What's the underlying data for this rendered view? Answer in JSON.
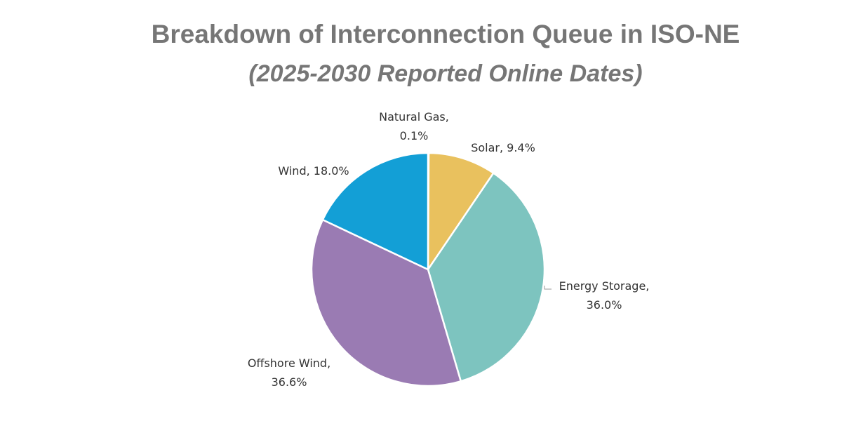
{
  "chart_data": {
    "type": "pie",
    "title": "Breakdown of Interconnection Queue in ISO-NE",
    "subtitle": "(2025-2030 Reported Online Dates)",
    "slices": [
      {
        "name": "Natural Gas",
        "value": 0.1,
        "color": "#c9c9c9",
        "label_lines": [
          "Natural Gas,",
          "0.1%"
        ]
      },
      {
        "name": "Solar",
        "value": 9.4,
        "color": "#e9c15e",
        "label_lines": [
          "Solar, 9.4%"
        ]
      },
      {
        "name": "Energy Storage",
        "value": 36.0,
        "color": "#7dc4bf",
        "label_lines": [
          "Energy Storage,",
          "36.0%"
        ]
      },
      {
        "name": "Offshore Wind",
        "value": 36.6,
        "color": "#9a7bb3",
        "label_lines": [
          "Offshore Wind,",
          "36.6%"
        ]
      },
      {
        "name": "Wind",
        "value": 18.0,
        "color": "#139fd6",
        "label_lines": [
          "Wind, 18.0%"
        ]
      }
    ],
    "unit": "%",
    "start_angle_deg": 0,
    "direction": "clockwise"
  }
}
